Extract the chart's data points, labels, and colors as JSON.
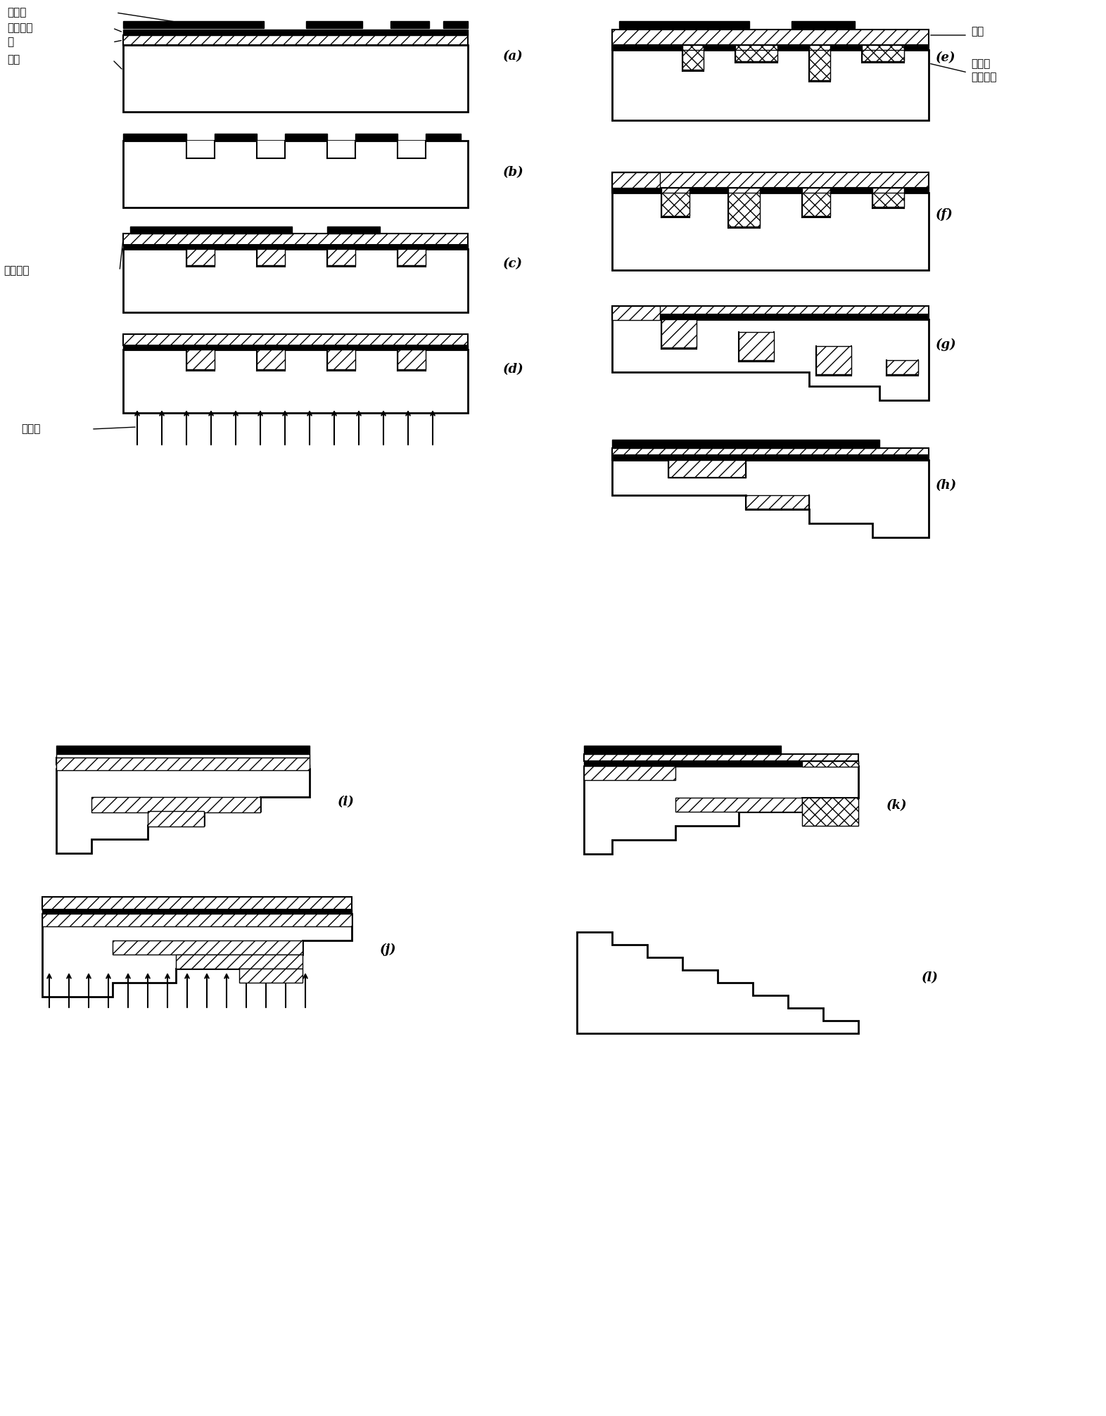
{
  "bg_color": "#ffffff",
  "fig_width": 15.72,
  "fig_height": 20.13,
  "labels_a": [
    "掩模版",
    "正光刻胶",
    "铬",
    "衬底"
  ],
  "label_e_zhenjiao": "正胶",
  "label_e_fanjiao": "显影后\n负胶图形",
  "label_uv": "紫外光",
  "label_neg": "负光刻胶",
  "panel_labels": [
    "(a)",
    "(b)",
    "(c)",
    "(d)",
    "(e)",
    "(f)",
    "(g)",
    "(h)",
    "(i)",
    "(j)",
    "(k)",
    "(l)"
  ]
}
